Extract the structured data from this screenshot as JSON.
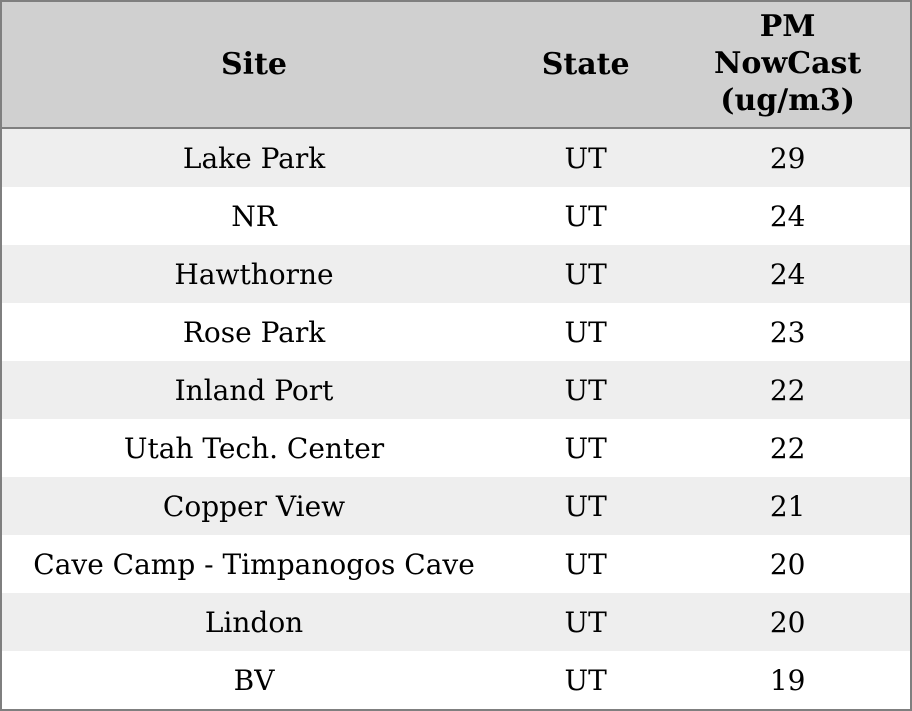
{
  "chart_data": {
    "type": "table",
    "columns": [
      "Site",
      "State",
      "PM NowCast (ug/m3)"
    ],
    "rows": [
      [
        "Lake Park",
        "UT",
        29
      ],
      [
        "NR",
        "UT",
        24
      ],
      [
        "Hawthorne",
        "UT",
        24
      ],
      [
        "Rose Park",
        "UT",
        23
      ],
      [
        "Inland Port",
        "UT",
        22
      ],
      [
        "Utah Tech. Center",
        "UT",
        22
      ],
      [
        "Copper View",
        "UT",
        21
      ],
      [
        "Cave Camp - Timpanogos Cave",
        "UT",
        20
      ],
      [
        "Lindon",
        "UT",
        20
      ],
      [
        "BV",
        "UT",
        19
      ]
    ],
    "title": "",
    "layout_hints": {
      "striped_rows": true,
      "stripe_start": "first-data-row",
      "alignment": "center"
    }
  },
  "colors": {
    "header_bg": "#d0d0d0",
    "row_alt_bg": "#eeeeee",
    "row_bg": "#ffffff",
    "border": "#7f7f7f",
    "text": "#000000"
  }
}
